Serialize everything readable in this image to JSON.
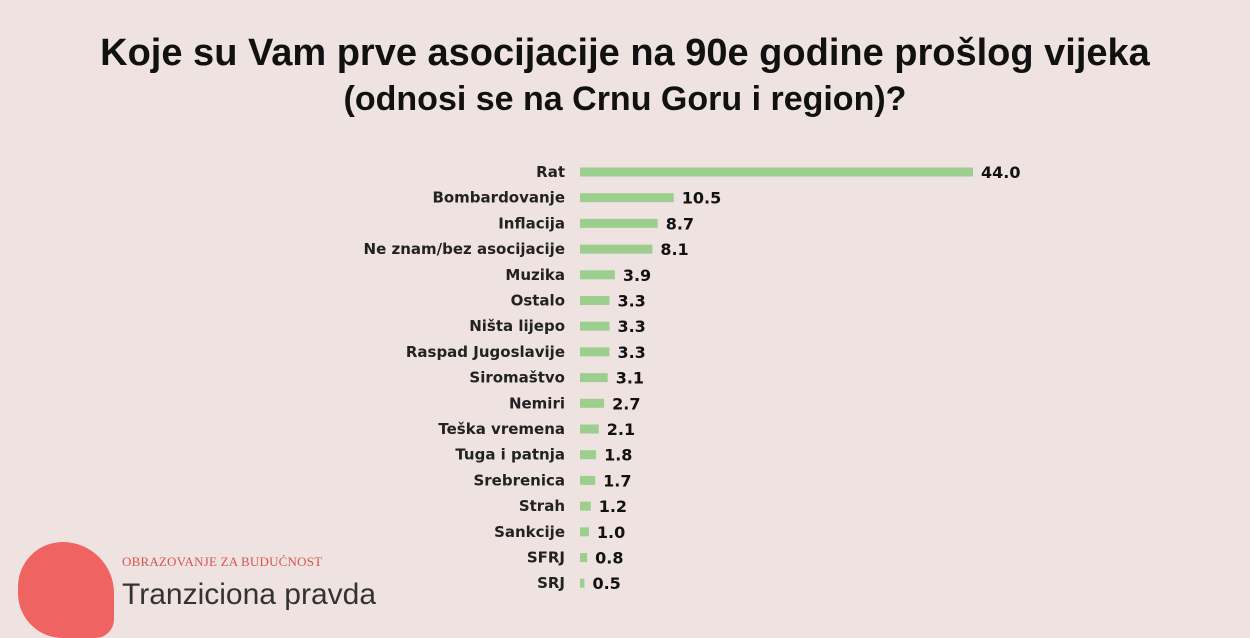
{
  "chart_data": {
    "type": "bar",
    "orientation": "horizontal",
    "title": "Koje su Vam prve asocijacije na 90e godine prošlog vijeka",
    "subtitle": "(odnosi se na Crnu Goru i region)?",
    "categories": [
      "Rat",
      "Bombardovanje",
      "Inflacija",
      "Ne znam/bez asocijacije",
      "Muzika",
      "Ostalo",
      "Ništa lijepo",
      "Raspad Jugoslavije",
      "Siromaštvo",
      "Nemiri",
      "Teška vremena",
      "Tuga i patnja",
      "Srebrenica",
      "Strah",
      "Sankcije",
      "SFRJ",
      "SRJ"
    ],
    "values": [
      44.0,
      10.5,
      8.7,
      8.1,
      3.9,
      3.3,
      3.3,
      3.3,
      3.1,
      2.7,
      2.1,
      1.8,
      1.7,
      1.2,
      1.0,
      0.8,
      0.5
    ],
    "value_labels": [
      "44.0",
      "10.5",
      "8.7",
      "8.1",
      "3.9",
      "3.3",
      "3.3",
      "3.3",
      "3.1",
      "2.7",
      "2.1",
      "1.8",
      "1.7",
      "1.2",
      "1.0",
      "0.8",
      "0.5"
    ],
    "xlim": [
      0,
      44.0
    ],
    "bar_color": "#9CCF8E",
    "grid": false,
    "legend": "none"
  },
  "branding": {
    "tagline": "OBRAZOVANJE ZA BUDUĆNOST",
    "name": "Tranziciona pravda",
    "accent_color": "#F06363"
  }
}
